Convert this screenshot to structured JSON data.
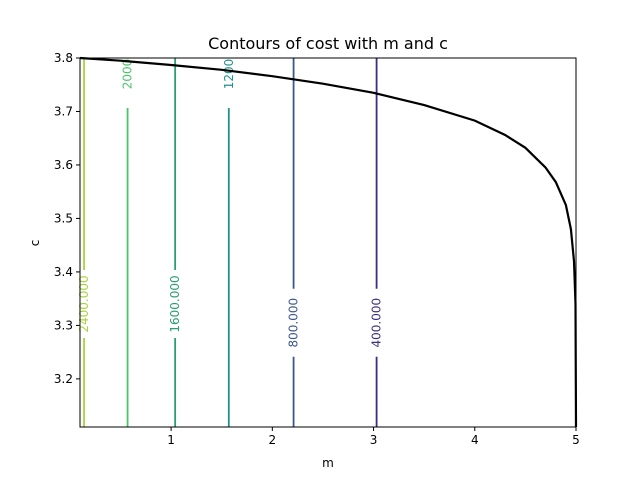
{
  "chart_data": {
    "type": "contour",
    "title": "Contours of cost with m and c",
    "xlabel": "m",
    "ylabel": "c",
    "xlim": [
      0.1,
      5.0
    ],
    "ylim": [
      3.11,
      3.8
    ],
    "x_ticks": [
      1,
      2,
      3,
      4,
      5
    ],
    "y_ticks": [
      3.2,
      3.3,
      3.4,
      3.5,
      3.6,
      3.7,
      3.8
    ],
    "grid": false,
    "contour_levels": [
      {
        "value": 400,
        "label": "400.000",
        "m": 3.03,
        "color": "#3b2f7f",
        "label_c": 3.305
      },
      {
        "value": 800,
        "label": "800.000",
        "m": 2.21,
        "color": "#3a578e",
        "label_c": 3.305
      },
      {
        "value": 1200,
        "label": "1200",
        "m": 1.57,
        "color": "#21918c",
        "label_c": 3.77
      },
      {
        "value": 1600,
        "label": "1600.000",
        "m": 1.04,
        "color": "#2a9d72",
        "label_c": 3.34
      },
      {
        "value": 2000,
        "label": "2000",
        "m": 0.57,
        "color": "#4cc36a",
        "label_c": 3.77
      },
      {
        "value": 2400,
        "label": "2400.000",
        "m": 0.14,
        "color": "#a6d63a",
        "label_c": 3.34
      }
    ],
    "boundary_curve": {
      "color": "#000000",
      "points": [
        [
          0.1,
          3.8
        ],
        [
          0.5,
          3.795
        ],
        [
          1.0,
          3.787
        ],
        [
          1.5,
          3.778
        ],
        [
          2.0,
          3.766
        ],
        [
          2.5,
          3.752
        ],
        [
          3.0,
          3.735
        ],
        [
          3.5,
          3.712
        ],
        [
          4.0,
          3.683
        ],
        [
          4.3,
          3.656
        ],
        [
          4.5,
          3.632
        ],
        [
          4.7,
          3.595
        ],
        [
          4.8,
          3.568
        ],
        [
          4.9,
          3.525
        ],
        [
          4.95,
          3.48
        ],
        [
          4.98,
          3.42
        ],
        [
          4.995,
          3.34
        ],
        [
          5.0,
          3.11
        ]
      ]
    }
  }
}
